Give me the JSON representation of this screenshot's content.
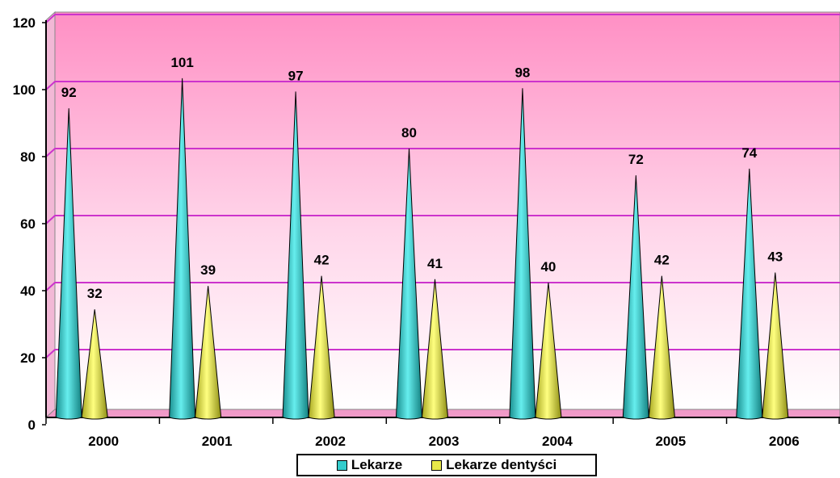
{
  "chart_data": {
    "type": "bar",
    "categories": [
      "2000",
      "2001",
      "2002",
      "2003",
      "2004",
      "2005",
      "2006"
    ],
    "series": [
      {
        "name": "Lekarze",
        "values": [
          92,
          101,
          97,
          80,
          98,
          72,
          74
        ],
        "color": "#33cccc"
      },
      {
        "name": "Lekarze dentyści",
        "values": [
          32,
          39,
          42,
          41,
          40,
          42,
          43
        ],
        "color": "#e8e84a"
      }
    ],
    "title": "",
    "xlabel": "",
    "ylabel": "",
    "ylim": [
      0,
      120
    ],
    "yticks": [
      0,
      20,
      40,
      60,
      80,
      100,
      120
    ],
    "grid": true,
    "gridline_color": "#cc33cc",
    "legend_position": "bottom",
    "mark_shape": "cone",
    "data_labels": true
  }
}
